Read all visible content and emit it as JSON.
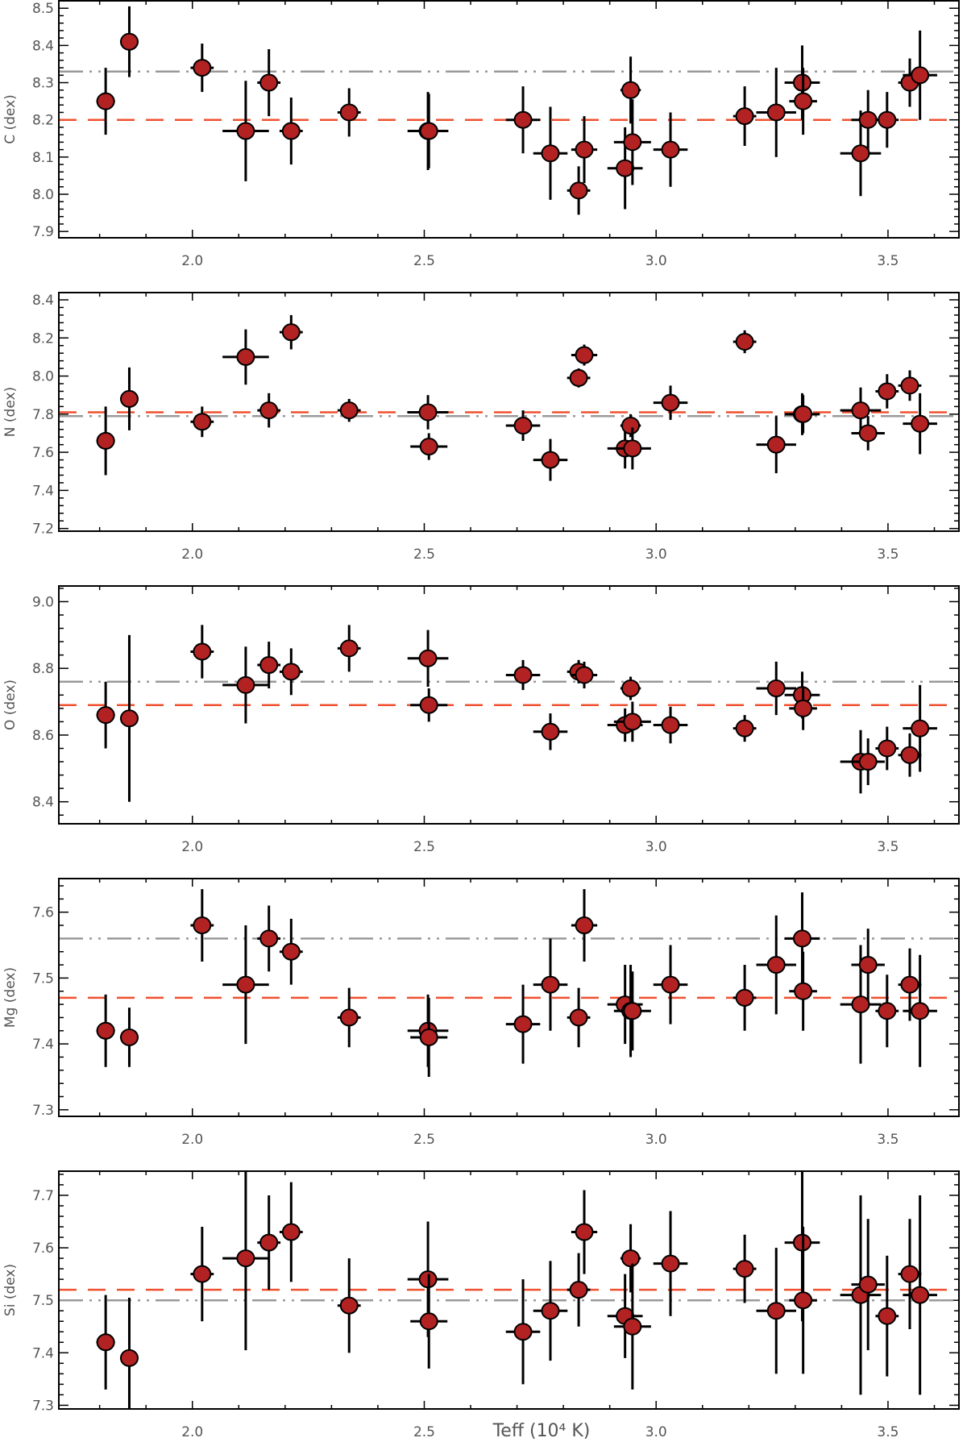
{
  "figure": {
    "xlabel": "Teff (10⁴ K)",
    "marker_color": "#B22222",
    "errorbar_color": "#000000",
    "ref_dashed_color": "#F0502F",
    "ref_dashdot_color": "#999999"
  },
  "chart_data": [
    {
      "type": "scatter",
      "ylabel": "C (dex)",
      "xlim": [
        1.712,
        3.653
      ],
      "ylim": [
        7.883,
        8.52
      ],
      "xticks": [
        2.0,
        2.5,
        3.0,
        3.5
      ],
      "xtick_labels": [
        "2.0",
        "2.5",
        "3.0",
        "3.5"
      ],
      "yticks": [
        7.9,
        8.0,
        8.1,
        8.2,
        8.3,
        8.4,
        8.5
      ],
      "ytick_labels": [
        "7.9",
        "8.0",
        "8.1",
        "8.2",
        "8.3",
        "8.4",
        "8.5"
      ],
      "ref_dashed": 8.2,
      "ref_dashdot": 8.33,
      "x": [
        1.813,
        1.864,
        2.021,
        2.115,
        2.165,
        2.213,
        2.338,
        2.508,
        2.51,
        2.713,
        2.772,
        2.833,
        2.845,
        2.933,
        2.945,
        2.949,
        3.031,
        3.191,
        3.259,
        3.315,
        3.317,
        3.441,
        3.457,
        3.498,
        3.547,
        3.569
      ],
      "xerr": [
        0.02,
        0.02,
        0.025,
        0.05,
        0.025,
        0.025,
        0.025,
        0.044,
        0.04,
        0.037,
        0.037,
        0.025,
        0.028,
        0.038,
        0.022,
        0.04,
        0.037,
        0.025,
        0.043,
        0.038,
        0.03,
        0.044,
        0.036,
        0.025,
        0.025,
        0.037
      ],
      "y": [
        8.25,
        8.41,
        8.34,
        8.17,
        8.3,
        8.17,
        8.22,
        8.17,
        8.17,
        8.2,
        8.11,
        8.01,
        8.12,
        8.07,
        8.28,
        8.14,
        8.12,
        8.21,
        8.22,
        8.3,
        8.25,
        8.11,
        8.2,
        8.2,
        8.3,
        8.32
      ],
      "yerr": [
        0.09,
        0.095,
        0.065,
        0.135,
        0.09,
        0.09,
        0.065,
        0.105,
        0.1,
        0.09,
        0.125,
        0.065,
        0.09,
        0.11,
        0.09,
        0.115,
        0.1,
        0.08,
        0.12,
        0.1,
        0.09,
        0.115,
        0.08,
        0.075,
        0.065,
        0.12
      ]
    },
    {
      "type": "scatter",
      "ylabel": "N (dex)",
      "xlim": [
        1.712,
        3.653
      ],
      "ylim": [
        7.186,
        8.438
      ],
      "xticks": [
        2.0,
        2.5,
        3.0,
        3.5
      ],
      "xtick_labels": [
        "2.0",
        "2.5",
        "3.0",
        "3.5"
      ],
      "yticks": [
        7.2,
        7.4,
        7.6,
        7.8,
        8.0,
        8.2,
        8.4
      ],
      "ytick_labels": [
        "7.2",
        "7.4",
        "7.6",
        "7.8",
        "8.0",
        "8.2",
        "8.4"
      ],
      "ref_dashed": 7.81,
      "ref_dashdot": 7.79,
      "x": [
        1.813,
        1.864,
        2.021,
        2.115,
        2.165,
        2.213,
        2.338,
        2.508,
        2.51,
        2.713,
        2.772,
        2.833,
        2.845,
        2.933,
        2.945,
        2.949,
        3.031,
        3.191,
        3.259,
        3.315,
        3.317,
        3.441,
        3.457,
        3.498,
        3.547,
        3.569
      ],
      "xerr": [
        0.02,
        0.02,
        0.025,
        0.05,
        0.025,
        0.025,
        0.025,
        0.044,
        0.04,
        0.037,
        0.037,
        0.025,
        0.028,
        0.038,
        0.022,
        0.04,
        0.037,
        0.025,
        0.043,
        0.038,
        0.03,
        0.044,
        0.036,
        0.025,
        0.025,
        0.037
      ],
      "y": [
        7.66,
        7.88,
        7.76,
        8.1,
        7.82,
        8.23,
        7.82,
        7.81,
        7.63,
        7.74,
        7.56,
        7.99,
        8.11,
        7.62,
        7.74,
        7.62,
        7.86,
        8.18,
        7.64,
        7.8,
        7.8,
        7.82,
        7.7,
        7.92,
        7.95,
        7.75
      ],
      "yerr": [
        0.18,
        0.165,
        0.08,
        0.145,
        0.09,
        0.09,
        0.06,
        0.09,
        0.07,
        0.08,
        0.11,
        0.05,
        0.055,
        0.105,
        0.06,
        0.11,
        0.09,
        0.06,
        0.15,
        0.11,
        0.1,
        0.12,
        0.09,
        0.09,
        0.08,
        0.16
      ]
    },
    {
      "type": "scatter",
      "ylabel": "O (dex)",
      "xlim": [
        1.712,
        3.653
      ],
      "ylim": [
        8.334,
        9.047
      ],
      "xticks": [
        2.0,
        2.5,
        3.0,
        3.5
      ],
      "xtick_labels": [
        "2.0",
        "2.5",
        "3.0",
        "3.5"
      ],
      "yticks": [
        8.4,
        8.6,
        8.8,
        9.0
      ],
      "ytick_labels": [
        "8.4",
        "8.6",
        "8.8",
        "9.0"
      ],
      "ref_dashed": 8.69,
      "ref_dashdot": 8.76,
      "x": [
        1.813,
        1.864,
        2.021,
        2.115,
        2.165,
        2.213,
        2.338,
        2.508,
        2.51,
        2.713,
        2.772,
        2.833,
        2.845,
        2.933,
        2.945,
        2.949,
        3.031,
        3.191,
        3.259,
        3.315,
        3.317,
        3.441,
        3.457,
        3.498,
        3.547,
        3.569
      ],
      "xerr": [
        0.02,
        0.02,
        0.025,
        0.05,
        0.025,
        0.025,
        0.025,
        0.044,
        0.04,
        0.037,
        0.037,
        0.025,
        0.028,
        0.038,
        0.022,
        0.04,
        0.037,
        0.025,
        0.043,
        0.038,
        0.03,
        0.044,
        0.036,
        0.025,
        0.025,
        0.037
      ],
      "y": [
        8.66,
        8.65,
        8.85,
        8.75,
        8.81,
        8.79,
        8.86,
        8.83,
        8.69,
        8.78,
        8.61,
        8.79,
        8.78,
        8.63,
        8.74,
        8.64,
        8.63,
        8.62,
        8.74,
        8.72,
        8.68,
        8.52,
        8.52,
        8.56,
        8.54,
        8.62
      ],
      "yerr": [
        0.1,
        0.25,
        0.08,
        0.115,
        0.07,
        0.07,
        0.07,
        0.085,
        0.05,
        0.045,
        0.055,
        0.035,
        0.04,
        0.05,
        0.035,
        0.06,
        0.055,
        0.04,
        0.08,
        0.07,
        0.065,
        0.095,
        0.07,
        0.065,
        0.065,
        0.13
      ]
    },
    {
      "type": "scatter",
      "ylabel": "Mg (dex)",
      "xlim": [
        1.712,
        3.653
      ],
      "ylim": [
        7.29,
        7.651
      ],
      "xticks": [
        2.0,
        2.5,
        3.0,
        3.5
      ],
      "xtick_labels": [
        "2.0",
        "2.5",
        "3.0",
        "3.5"
      ],
      "yticks": [
        7.3,
        7.4,
        7.5,
        7.6
      ],
      "ytick_labels": [
        "7.3",
        "7.4",
        "7.5",
        "7.6"
      ],
      "ref_dashed": 7.47,
      "ref_dashdot": 7.56,
      "x": [
        1.813,
        1.864,
        2.021,
        2.115,
        2.165,
        2.213,
        2.338,
        2.508,
        2.51,
        2.713,
        2.772,
        2.833,
        2.845,
        2.933,
        2.945,
        2.949,
        3.031,
        3.191,
        3.259,
        3.315,
        3.317,
        3.441,
        3.457,
        3.498,
        3.547,
        3.569
      ],
      "xerr": [
        0.02,
        0.02,
        0.025,
        0.05,
        0.025,
        0.025,
        0.025,
        0.044,
        0.04,
        0.037,
        0.037,
        0.025,
        0.028,
        0.038,
        0.022,
        0.04,
        0.037,
        0.025,
        0.043,
        0.038,
        0.03,
        0.044,
        0.036,
        0.025,
        0.025,
        0.037
      ],
      "y": [
        7.42,
        7.41,
        7.58,
        7.49,
        7.56,
        7.54,
        7.44,
        7.42,
        7.41,
        7.43,
        7.49,
        7.44,
        7.58,
        7.46,
        7.45,
        7.45,
        7.49,
        7.47,
        7.52,
        7.56,
        7.48,
        7.46,
        7.52,
        7.45,
        7.49,
        7.45
      ],
      "yerr": [
        0.055,
        0.045,
        0.055,
        0.09,
        0.05,
        0.05,
        0.045,
        0.055,
        0.06,
        0.06,
        0.07,
        0.045,
        0.055,
        0.06,
        0.07,
        0.06,
        0.06,
        0.05,
        0.075,
        0.07,
        0.06,
        0.09,
        0.055,
        0.055,
        0.055,
        0.085
      ]
    },
    {
      "type": "scatter",
      "ylabel": "Si (dex)",
      "xlim": [
        1.712,
        3.653
      ],
      "ylim": [
        7.293,
        7.746
      ],
      "xticks": [
        2.0,
        2.5,
        3.0,
        3.5
      ],
      "xtick_labels": [
        "2.0",
        "2.5",
        "3.0",
        "3.5"
      ],
      "yticks": [
        7.3,
        7.4,
        7.5,
        7.6,
        7.7
      ],
      "ytick_labels": [
        "7.3",
        "7.4",
        "7.5",
        "7.6",
        "7.7"
      ],
      "ref_dashed": 7.52,
      "ref_dashdot": 7.5,
      "x": [
        1.813,
        1.864,
        2.021,
        2.115,
        2.165,
        2.213,
        2.338,
        2.508,
        2.51,
        2.713,
        2.772,
        2.833,
        2.845,
        2.933,
        2.945,
        2.949,
        3.031,
        3.191,
        3.259,
        3.315,
        3.317,
        3.441,
        3.457,
        3.498,
        3.547,
        3.569
      ],
      "xerr": [
        0.02,
        0.02,
        0.025,
        0.05,
        0.025,
        0.025,
        0.025,
        0.044,
        0.04,
        0.037,
        0.037,
        0.025,
        0.028,
        0.038,
        0.022,
        0.04,
        0.037,
        0.025,
        0.043,
        0.038,
        0.03,
        0.044,
        0.036,
        0.025,
        0.025,
        0.037
      ],
      "y": [
        7.42,
        7.39,
        7.55,
        7.58,
        7.61,
        7.63,
        7.49,
        7.54,
        7.46,
        7.44,
        7.48,
        7.52,
        7.63,
        7.47,
        7.58,
        7.45,
        7.57,
        7.56,
        7.48,
        7.61,
        7.5,
        7.51,
        7.53,
        7.47,
        7.55,
        7.51
      ],
      "yerr": [
        0.09,
        0.115,
        0.09,
        0.175,
        0.09,
        0.095,
        0.09,
        0.11,
        0.09,
        0.1,
        0.095,
        0.07,
        0.08,
        0.08,
        0.065,
        0.12,
        0.1,
        0.065,
        0.12,
        0.15,
        0.14,
        0.19,
        0.125,
        0.115,
        0.105,
        0.19
      ]
    }
  ]
}
